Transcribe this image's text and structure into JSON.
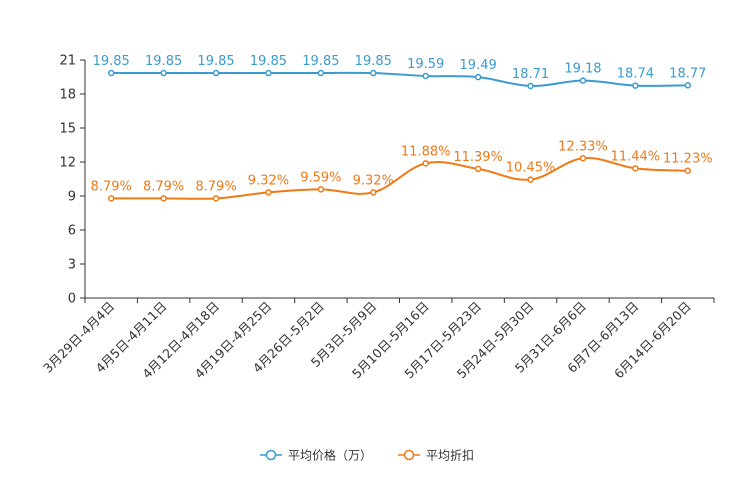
{
  "chart_data": {
    "type": "line",
    "title": "",
    "xlabel": "",
    "ylabel": "",
    "ylim": [
      0,
      21
    ],
    "yticks": [
      0,
      3,
      6,
      9,
      12,
      15,
      18,
      21
    ],
    "grid": false,
    "legend_position": "bottom-center",
    "categories": [
      "3月29日-4月4日",
      "4月5日-4月11日",
      "4月12日-4月18日",
      "4月19日-4月25日",
      "4月26日-5月2日",
      "5月3日-5月9日",
      "5月10日-5月16日",
      "5月17日-5月23日",
      "5月24日-5月30日",
      "5月31日-6月6日",
      "6月7日-6月13日",
      "6月14日-6月20日"
    ],
    "series": [
      {
        "name": "平均价格（万）",
        "color": "#3a9bd0",
        "values": [
          19.85,
          19.85,
          19.85,
          19.85,
          19.85,
          19.85,
          19.59,
          19.49,
          18.71,
          19.18,
          18.74,
          18.77
        ],
        "labels": [
          "19.85",
          "19.85",
          "19.85",
          "19.85",
          "19.85",
          "19.85",
          "19.59",
          "19.49",
          "18.71",
          "19.18",
          "18.74",
          "18.77"
        ]
      },
      {
        "name": "平均折扣",
        "color": "#f07a17",
        "values": [
          8.79,
          8.79,
          8.79,
          9.32,
          9.59,
          9.32,
          11.88,
          11.39,
          10.45,
          12.33,
          11.44,
          11.23
        ],
        "labels": [
          "8.79%",
          "8.79%",
          "8.79%",
          "9.32%",
          "9.59%",
          "9.32%",
          "11.88%",
          "11.39%",
          "10.45%",
          "12.33%",
          "11.44%",
          "11.23%"
        ]
      }
    ]
  }
}
